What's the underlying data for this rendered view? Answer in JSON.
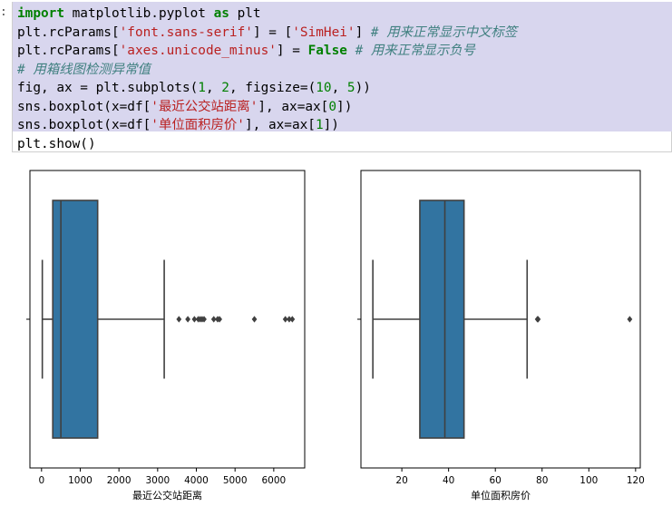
{
  "prompt_mark": ":",
  "code": {
    "line1": {
      "kw1": "import",
      "mod": " matplotlib.pyplot ",
      "kw2": "as",
      "alias": " plt"
    },
    "line2": {
      "pre": "plt.rcParams[",
      "key": "'font.sans-serif'",
      "mid": "] = [",
      "val": "'SimHei'",
      "post": "] ",
      "comment": "# 用来正常显示中文标签"
    },
    "line3": {
      "pre": "plt.rcParams[",
      "key": "'axes.unicode_minus'",
      "mid": "] = ",
      "val": "False",
      "comment": " # 用来正常显示负号"
    },
    "line4": {
      "comment": "# 用箱线图检测异常值"
    },
    "line5": {
      "pre": "fig, ax = plt.subplots(",
      "a": "1",
      "sep1": ", ",
      "b": "2",
      "sep2": ", figsize=(",
      "c": "10",
      "sep3": ", ",
      "d": "5",
      "post": "))"
    },
    "line6": {
      "pre": "sns.boxplot(x=df[",
      "str": "'最近公交站距离'",
      "mid": "], ax=ax[",
      "idx": "0",
      "post": "])"
    },
    "line7": {
      "pre": "sns.boxplot(x=df[",
      "str": "'单位面积房价'",
      "mid": "], ax=ax[",
      "idx": "1",
      "post": "])"
    },
    "line8": {
      "text": "plt.show()"
    }
  },
  "chart_data": [
    {
      "type": "box",
      "xlabel": "最近公交站距离",
      "xticks": [
        0,
        1000,
        2000,
        3000,
        4000,
        5000,
        6000
      ],
      "xlim": [
        -300,
        6800
      ],
      "color": "#3274a1",
      "whisker_low": 20,
      "q1": 290,
      "median": 500,
      "q3": 1450,
      "whisker_high": 3170,
      "outliers": [
        3550,
        3780,
        3950,
        4050,
        4100,
        4150,
        4200,
        4450,
        4550,
        4600,
        5500,
        6300,
        6400,
        6480
      ]
    },
    {
      "type": "box",
      "xlabel": "单位面积房价",
      "xticks": [
        20,
        40,
        60,
        80,
        100,
        120
      ],
      "xlim": [
        2.5,
        122
      ],
      "color": "#3274a1",
      "whisker_low": 7.6,
      "q1": 27.7,
      "median": 38.4,
      "q3": 46.6,
      "whisker_high": 73.6,
      "outliers": [
        78.0,
        78.3,
        117.5
      ]
    }
  ]
}
